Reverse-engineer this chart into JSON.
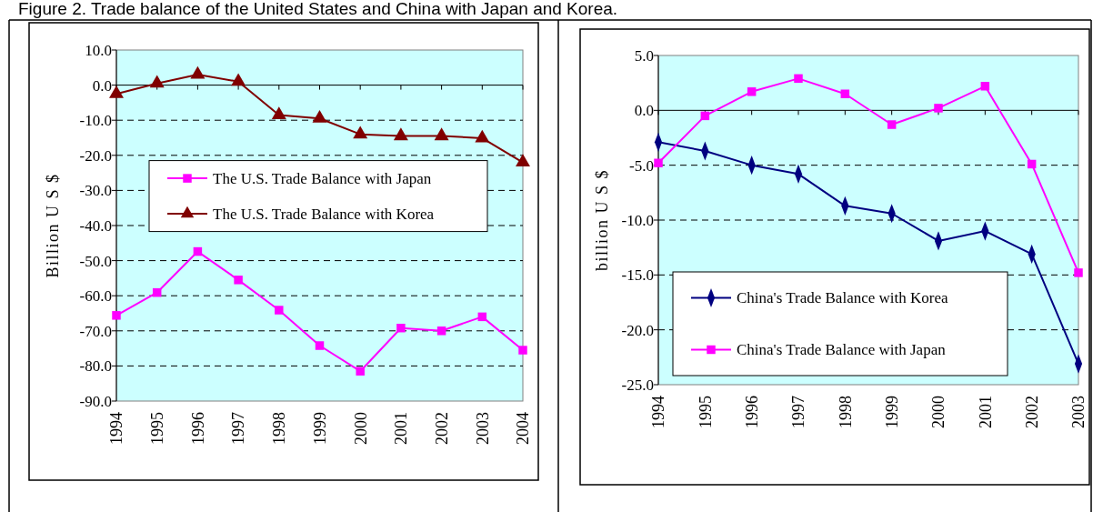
{
  "chart_data": [
    {
      "type": "line",
      "title": "Figure 2. Trade balance of the United States and China with Japan and Korea.",
      "ylabel": "Billion U S $",
      "categories": [
        "1994",
        "1995",
        "1996",
        "1997",
        "1998",
        "1999",
        "2000",
        "2001",
        "2002",
        "2003",
        "2004"
      ],
      "series": [
        {
          "name": "The U.S. Trade Balance with Japan",
          "color": "#ff00ff",
          "marker": "square",
          "values": [
            -65.6,
            -59.1,
            -47.4,
            -55.5,
            -64.1,
            -74.2,
            -81.5,
            -69.2,
            -70.0,
            -66.0,
            -75.5
          ]
        },
        {
          "name": "The U.S. Trade Balance with Korea",
          "color": "#800000",
          "marker": "triangle",
          "values": [
            -2.5,
            0.5,
            3.0,
            1.0,
            -8.5,
            -9.5,
            -14.0,
            -14.5,
            -14.5,
            -15.1,
            -22.0
          ]
        }
      ],
      "ylim": [
        -90,
        10
      ],
      "yticks": [
        {
          "value": 10,
          "label": "10.0"
        },
        {
          "value": 0,
          "label": "0.0"
        },
        {
          "value": -10,
          "label": "-10.0"
        },
        {
          "value": -20,
          "label": "-20.0"
        },
        {
          "value": -30,
          "label": "-30.0"
        },
        {
          "value": -40,
          "label": "-40.0"
        },
        {
          "value": -50,
          "label": "-50.0"
        },
        {
          "value": -60,
          "label": "-60.0"
        },
        {
          "value": -70,
          "label": "-70.0"
        },
        {
          "value": -80,
          "label": "-80.0"
        },
        {
          "value": -90,
          "label": "-90.0"
        }
      ],
      "grid": "y",
      "legend": "center"
    },
    {
      "type": "line",
      "ylabel": "billion U S $",
      "categories": [
        "1994",
        "1995",
        "1996",
        "1997",
        "1998",
        "1999",
        "2000",
        "2001",
        "2002",
        "2003"
      ],
      "series": [
        {
          "name": "China's Trade Balance with Korea",
          "color": "#000080",
          "marker": "diamond",
          "values": [
            -2.9,
            -3.7,
            -5.0,
            -5.8,
            -8.7,
            -9.4,
            -11.9,
            -11.0,
            -13.1,
            -23.1
          ]
        },
        {
          "name": "China's Trade Balance with Japan",
          "color": "#ff00ff",
          "marker": "square",
          "values": [
            -4.8,
            -0.5,
            1.7,
            2.9,
            1.5,
            -1.3,
            0.2,
            2.2,
            -4.9,
            -14.8
          ]
        }
      ],
      "ylim": [
        -25,
        5
      ],
      "yticks": [
        {
          "value": 5,
          "label": "5.0"
        },
        {
          "value": 0,
          "label": "0.0"
        },
        {
          "value": -5,
          "label": "-5.0"
        },
        {
          "value": -10,
          "label": "-10.0"
        },
        {
          "value": -15,
          "label": "-15.0"
        },
        {
          "value": -20,
          "label": "-20.0"
        },
        {
          "value": -25,
          "label": "-25.0"
        }
      ],
      "grid": "y",
      "legend": "bottom left"
    }
  ]
}
